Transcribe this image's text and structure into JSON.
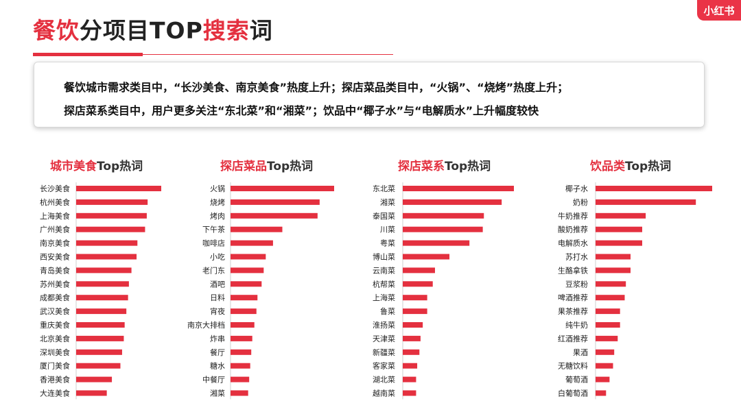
{
  "header": {
    "title_part1": "餐饮",
    "title_part2": "分项目TOP",
    "title_part3": "搜索",
    "title_part4": "词",
    "logo_text": "小红书"
  },
  "summary": {
    "line1": "餐饮城市需求类目中，“长沙美食、南京美食”热度上升；探店菜品类目中，“火锅”、“烧烤”热度上升；",
    "line2": "探店菜系类目中，用户更多关注“东北菜”和“湘菜”；饮品中“椰子水”与“电解质水”上升幅度较快"
  },
  "colors": {
    "accent": "#e4303f",
    "bar": "#e4303f"
  },
  "chart_data": [
    {
      "type": "bar",
      "orientation": "horizontal",
      "title_red": "城市美食",
      "title_black": "Top热词",
      "categories": [
        "长沙美食",
        "杭州美食",
        "上海美食",
        "广州美食",
        "南京美食",
        "西安美食",
        "青岛美食",
        "苏州美食",
        "成都美食",
        "武汉美食",
        "重庆美食",
        "北京美食",
        "深圳美食",
        "厦门美食",
        "香港美食",
        "大连美食"
      ],
      "values": [
        100,
        84,
        83,
        81,
        72,
        71,
        65,
        62,
        61,
        59,
        57,
        56,
        54,
        52,
        42,
        36
      ]
    },
    {
      "type": "bar",
      "orientation": "horizontal",
      "title_red": "探店菜品",
      "title_black": "Top热词",
      "categories": [
        "火锅",
        "烧烤",
        "烤肉",
        "下午茶",
        "咖啡店",
        "小吃",
        "老门东",
        "酒吧",
        "日料",
        "宵夜",
        "南京大排档",
        "炸串",
        "餐厅",
        "糖水",
        "中餐厅",
        "湘菜"
      ],
      "values": [
        100,
        86,
        84,
        50,
        41,
        34,
        32,
        30,
        26,
        25,
        23,
        21,
        20,
        19,
        18,
        17
      ]
    },
    {
      "type": "bar",
      "orientation": "horizontal",
      "title_red": "探店菜系",
      "title_black": "Top热词",
      "categories": [
        "东北菜",
        "湘菜",
        "泰国菜",
        "川菜",
        "粤菜",
        "博山菜",
        "云南菜",
        "杭帮菜",
        "上海菜",
        "鲁菜",
        "淮扬菜",
        "天津菜",
        "新疆菜",
        "客家菜",
        "湖北菜",
        "越南菜"
      ],
      "values": [
        100,
        89,
        73,
        72,
        60,
        42,
        29,
        27,
        22,
        22,
        18,
        16,
        15,
        13,
        12,
        12
      ]
    },
    {
      "type": "bar",
      "orientation": "horizontal",
      "title_red": "饮品类",
      "title_black": "Top热词",
      "categories": [
        "椰子水",
        "奶粉",
        "牛奶推荐",
        "酸奶推荐",
        "电解质水",
        "苏打水",
        "生酪拿铁",
        "豆浆粉",
        "啤酒推荐",
        "果茶推荐",
        "纯牛奶",
        "红酒推荐",
        "果酒",
        "无糖饮料",
        "葡萄酒",
        "白葡萄酒"
      ],
      "values": [
        100,
        86,
        43,
        40,
        40,
        30,
        30,
        26,
        25,
        21,
        21,
        19,
        16,
        15,
        12,
        9
      ]
    }
  ]
}
